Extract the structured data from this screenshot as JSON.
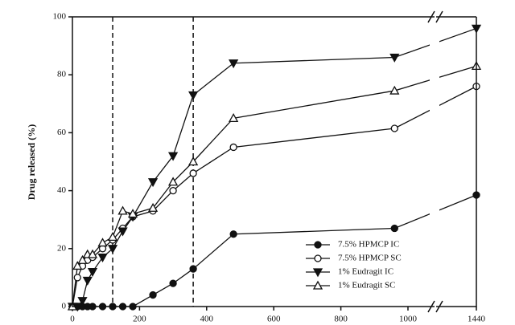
{
  "chart_data": {
    "type": "line",
    "y_label": "Drug released (%)",
    "x": [
      0,
      15,
      30,
      45,
      60,
      90,
      120,
      150,
      180,
      240,
      300,
      360,
      480,
      960,
      1440
    ],
    "series": [
      {
        "name": "7.5% HPMCP IC",
        "color": "#111111",
        "marker": "circle",
        "filled": true,
        "values": [
          0,
          0,
          0,
          0,
          0,
          0,
          0,
          0,
          0,
          4,
          8,
          13,
          25,
          27,
          38.5
        ]
      },
      {
        "name": "7.5% HPMCP SC",
        "color": "#111111",
        "marker": "circle",
        "filled": false,
        "values": [
          0,
          10,
          14,
          16,
          17,
          20,
          23,
          27,
          31,
          33,
          40,
          46,
          55,
          61.5,
          76
        ]
      },
      {
        "name": "1% Eudragit IC",
        "color": "#111111",
        "marker": "triangle-down",
        "filled": true,
        "values": [
          0,
          0,
          2,
          9,
          12,
          17,
          20,
          26,
          31,
          43,
          52,
          73,
          84,
          86,
          96
        ]
      },
      {
        "name": "1% Eudragit SC",
        "color": "#111111",
        "marker": "triangle-up",
        "filled": false,
        "values": [
          0,
          14,
          16,
          18,
          18,
          22,
          24,
          33,
          32,
          34,
          43,
          50,
          65,
          74.5,
          83
        ]
      }
    ],
    "xlim": [
      0,
      1440
    ],
    "x_break": [
      1060,
      1400
    ],
    "xticks": [
      0,
      200,
      400,
      600,
      800,
      1000,
      1440
    ],
    "ylim": [
      0,
      100
    ],
    "yticks": [
      0,
      20,
      40,
      60,
      80,
      100
    ],
    "vlines": [
      120,
      360
    ],
    "legend": "lower-right"
  }
}
